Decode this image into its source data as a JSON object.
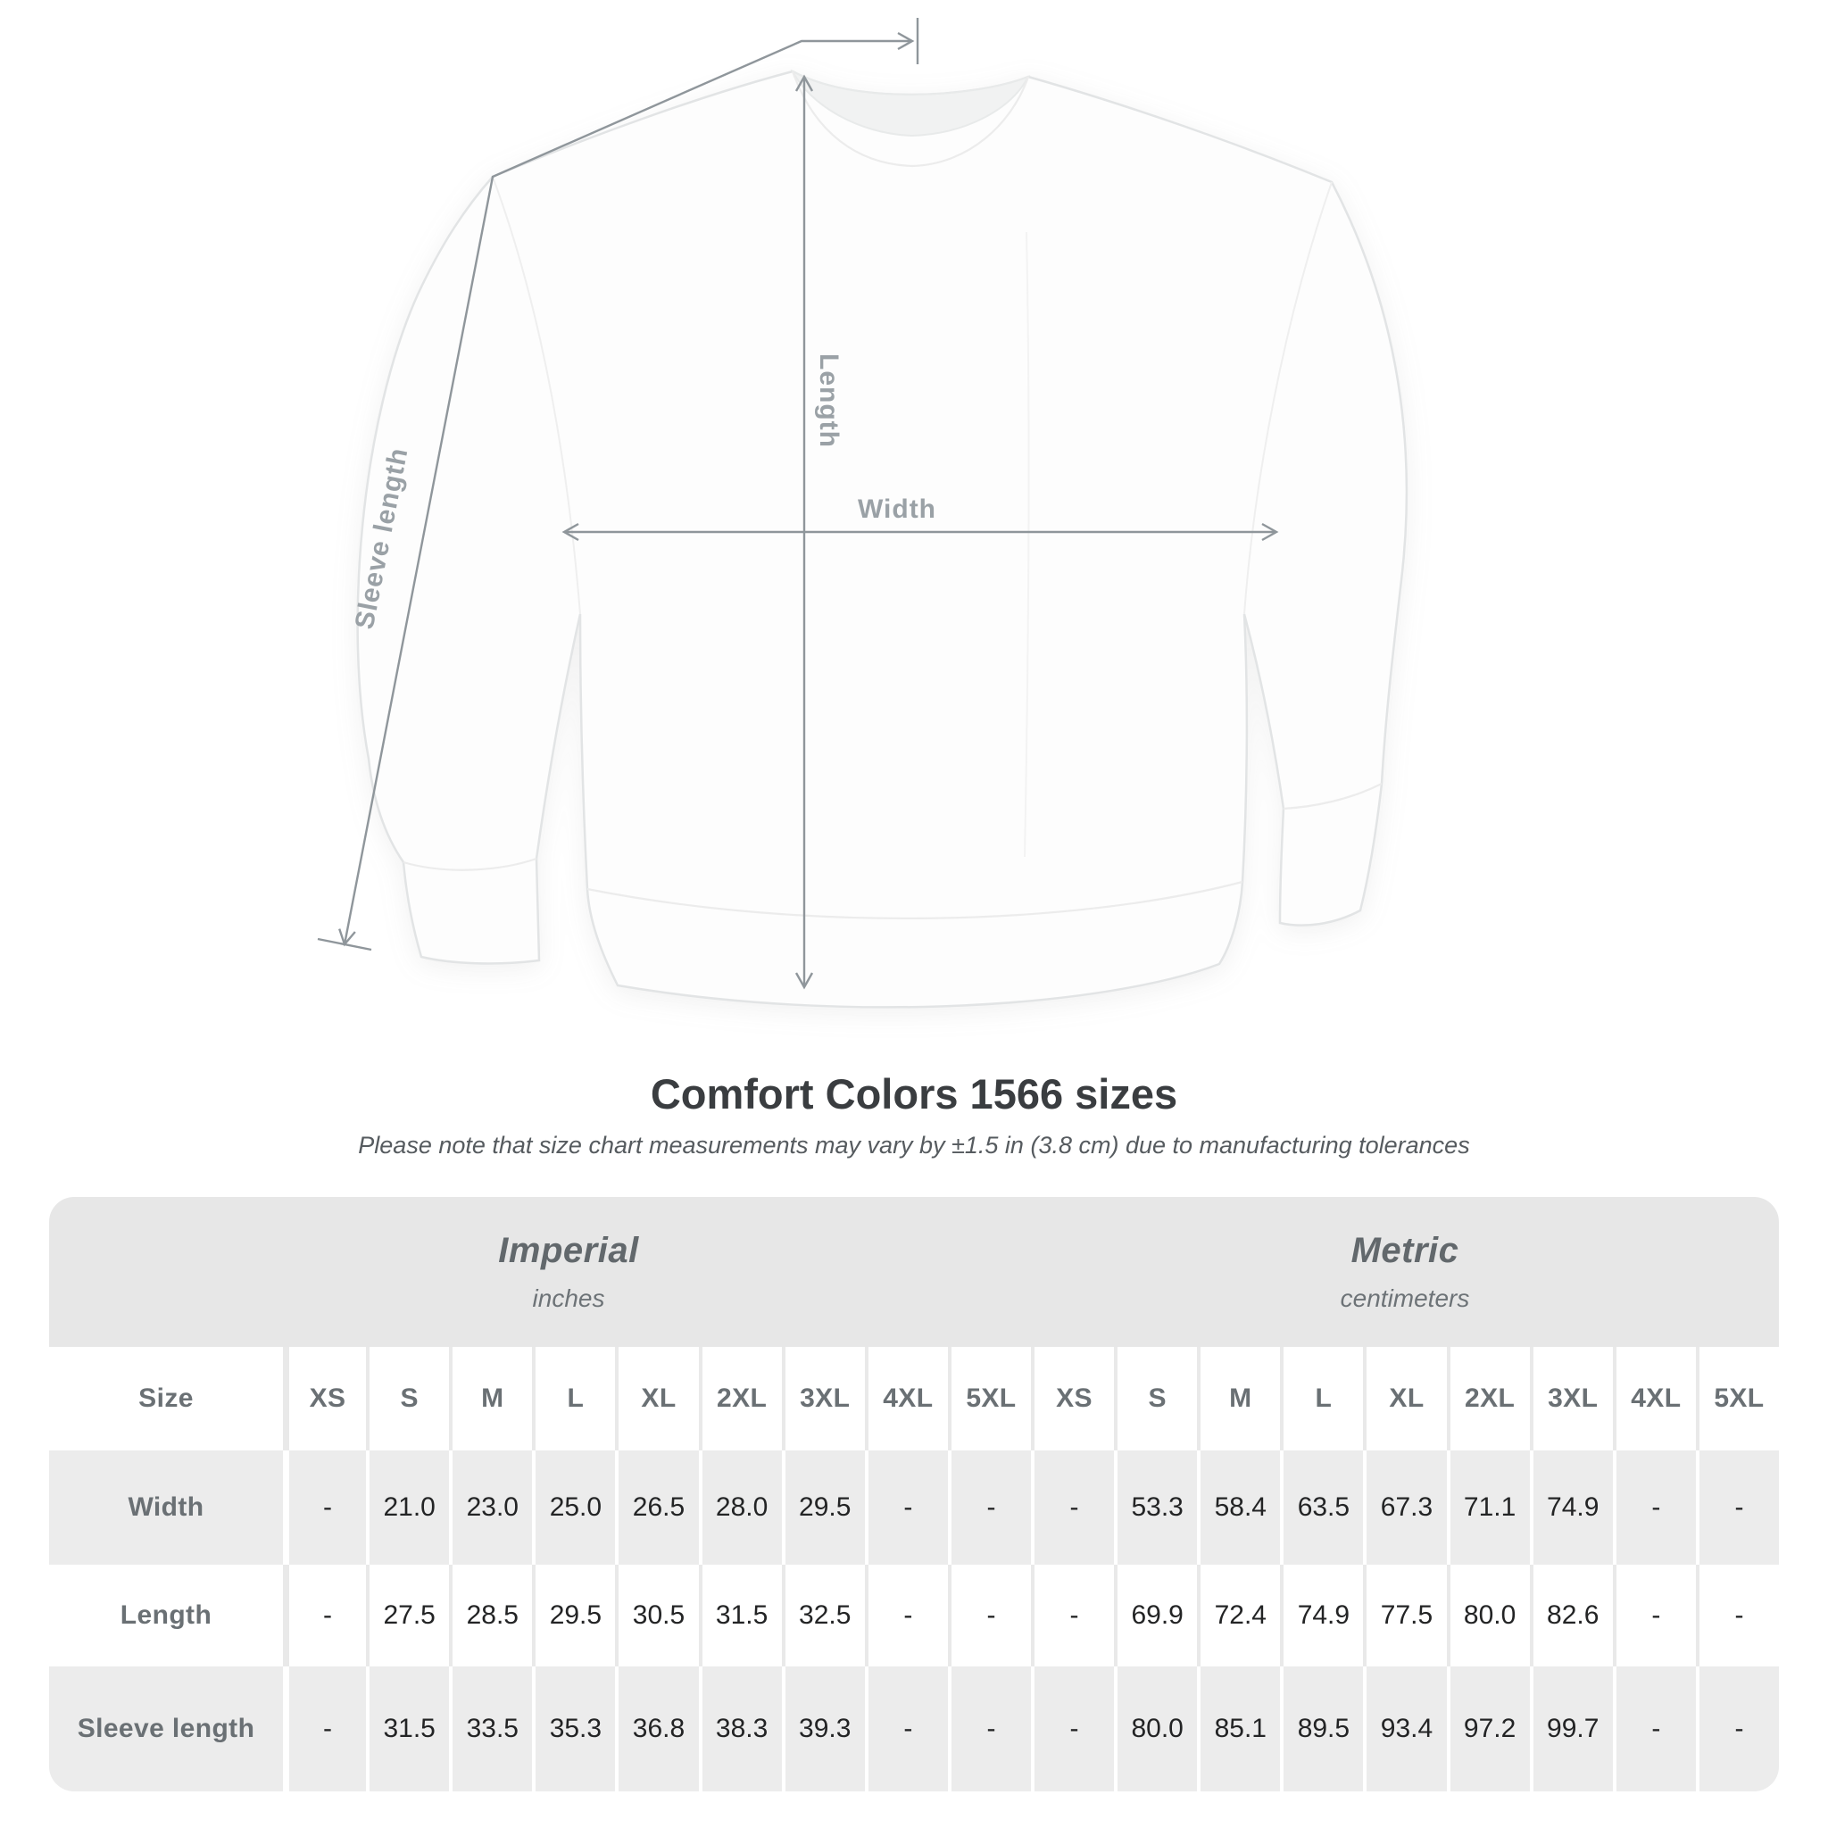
{
  "diagram": {
    "labels": {
      "length": "Length",
      "width": "Width",
      "sleeve": "Sleeve length"
    }
  },
  "chart_data": {
    "type": "table",
    "title": "Comfort Colors 1566 sizes",
    "note": "Please note that size chart measurements may vary by ±1.5 in (3.8 cm) due to manufacturing tolerances",
    "groups": [
      {
        "label": "Imperial",
        "sublabel": "inches"
      },
      {
        "label": "Metric",
        "sublabel": "centimeters"
      }
    ],
    "size_header": "Size",
    "sizes": [
      "XS",
      "S",
      "M",
      "L",
      "XL",
      "2XL",
      "3XL",
      "4XL",
      "5XL"
    ],
    "rows": [
      {
        "label": "Width",
        "imperial": [
          "-",
          "21.0",
          "23.0",
          "25.0",
          "26.5",
          "28.0",
          "29.5",
          "-",
          "-"
        ],
        "metric": [
          "-",
          "53.3",
          "58.4",
          "63.5",
          "67.3",
          "71.1",
          "74.9",
          "-",
          "-"
        ]
      },
      {
        "label": "Length",
        "imperial": [
          "-",
          "27.5",
          "28.5",
          "29.5",
          "30.5",
          "31.5",
          "32.5",
          "-",
          "-"
        ],
        "metric": [
          "-",
          "69.9",
          "72.4",
          "74.9",
          "77.5",
          "80.0",
          "82.6",
          "-",
          "-"
        ]
      },
      {
        "label": "Sleeve length",
        "imperial": [
          "-",
          "31.5",
          "33.5",
          "35.3",
          "36.8",
          "38.3",
          "39.3",
          "-",
          "-"
        ],
        "metric": [
          "-",
          "80.0",
          "85.1",
          "89.5",
          "93.4",
          "97.2",
          "99.7",
          "-",
          "-"
        ]
      }
    ]
  },
  "colors": {
    "group_band": "#e7e7e7",
    "row_alt": "#ececec",
    "measure_line": "#8f969b",
    "diagram_label": "#9aa1a6",
    "header_text": "#6a7074",
    "value_text": "#232425",
    "title_text": "#3a3d40"
  }
}
